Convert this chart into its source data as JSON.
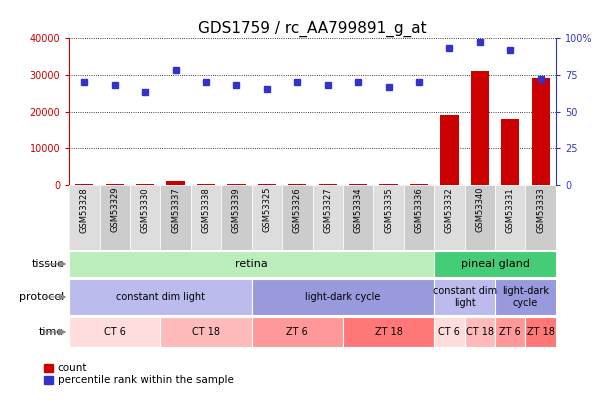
{
  "title": "GDS1759 / rc_AA799891_g_at",
  "samples": [
    "GSM53328",
    "GSM53329",
    "GSM53330",
    "GSM53337",
    "GSM53338",
    "GSM53339",
    "GSM53325",
    "GSM53326",
    "GSM53327",
    "GSM53334",
    "GSM53335",
    "GSM53336",
    "GSM53332",
    "GSM53340",
    "GSM53331",
    "GSM53333"
  ],
  "counts": [
    400,
    400,
    400,
    1200,
    400,
    400,
    400,
    400,
    400,
    400,
    400,
    400,
    19000,
    31000,
    18000,
    29000
  ],
  "percentile": [
    70,
    68,
    63,
    78,
    70,
    68,
    65,
    70,
    68,
    70,
    67,
    70,
    93,
    97,
    92,
    72
  ],
  "left_ylim": [
    0,
    40000
  ],
  "left_yticks": [
    0,
    10000,
    20000,
    30000,
    40000
  ],
  "right_ylim": [
    0,
    100
  ],
  "right_yticks": [
    0,
    25,
    50,
    75,
    100
  ],
  "left_color": "#cc0000",
  "right_color": "#3333cc",
  "bar_color": "#cc0000",
  "dot_color": "#3333cc",
  "tissue_rows": [
    {
      "label": "retina",
      "start": 0,
      "end": 12,
      "color": "#bbeebb"
    },
    {
      "label": "pineal gland",
      "start": 12,
      "end": 16,
      "color": "#44cc77"
    }
  ],
  "protocol_rows": [
    {
      "label": "constant dim light",
      "start": 0,
      "end": 6,
      "color": "#bbbbee"
    },
    {
      "label": "light-dark cycle",
      "start": 6,
      "end": 12,
      "color": "#9999dd"
    },
    {
      "label": "constant dim\nlight",
      "start": 12,
      "end": 14,
      "color": "#bbbbee"
    },
    {
      "label": "light-dark\ncycle",
      "start": 14,
      "end": 16,
      "color": "#9999dd"
    }
  ],
  "time_rows": [
    {
      "label": "CT 6",
      "start": 0,
      "end": 3,
      "color": "#ffdddd"
    },
    {
      "label": "CT 18",
      "start": 3,
      "end": 6,
      "color": "#ffbbbb"
    },
    {
      "label": "ZT 6",
      "start": 6,
      "end": 9,
      "color": "#ff9999"
    },
    {
      "label": "ZT 18",
      "start": 9,
      "end": 12,
      "color": "#ff7777"
    },
    {
      "label": "CT 6",
      "start": 12,
      "end": 13,
      "color": "#ffdddd"
    },
    {
      "label": "CT 18",
      "start": 13,
      "end": 14,
      "color": "#ffbbbb"
    },
    {
      "label": "ZT 6",
      "start": 14,
      "end": 15,
      "color": "#ff9999"
    },
    {
      "label": "ZT 18",
      "start": 15,
      "end": 16,
      "color": "#ff7777"
    }
  ],
  "row_label_fontsize": 8,
  "tick_fontsize": 7,
  "title_fontsize": 11
}
